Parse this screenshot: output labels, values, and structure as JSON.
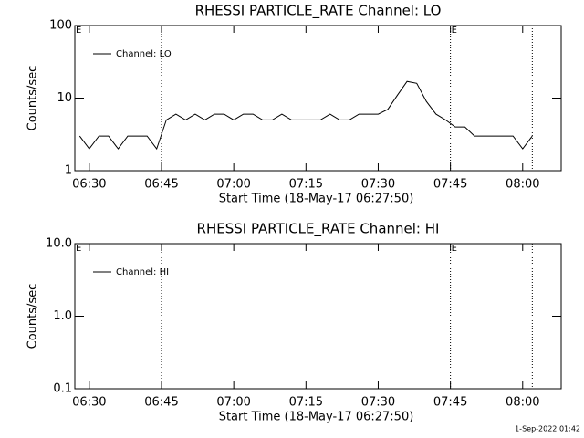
{
  "chart_data": [
    {
      "type": "line",
      "title": "RHESSI PARTICLE_RATE Channel: LO",
      "x_label": "Start Time (18-May-17 06:27:50)",
      "y_label": "Counts/sec",
      "y_log": true,
      "ylim": [
        1,
        100
      ],
      "yticks": [
        1,
        10,
        100
      ],
      "xlim": [
        "06:27",
        "08:08"
      ],
      "xticks": [
        "06:30",
        "06:45",
        "07:00",
        "07:15",
        "07:30",
        "07:45",
        "08:00"
      ],
      "vlines": [
        "06:45",
        "07:45",
        "08:02"
      ],
      "annotations": [
        {
          "text": "E",
          "x": "06:27"
        },
        {
          "text": "E",
          "x": "07:45"
        }
      ],
      "x": [
        "06:28",
        "06:30",
        "06:32",
        "06:34",
        "06:36",
        "06:38",
        "06:40",
        "06:42",
        "06:44",
        "06:46",
        "06:48",
        "06:50",
        "06:52",
        "06:54",
        "06:56",
        "06:58",
        "07:00",
        "07:02",
        "07:04",
        "07:06",
        "07:08",
        "07:10",
        "07:12",
        "07:14",
        "07:16",
        "07:18",
        "07:20",
        "07:22",
        "07:24",
        "07:26",
        "07:28",
        "07:30",
        "07:32",
        "07:34",
        "07:36",
        "07:38",
        "07:40",
        "07:42",
        "07:44",
        "07:46",
        "07:48",
        "07:50",
        "07:52",
        "07:54",
        "07:56",
        "07:58",
        "08:00",
        "08:02"
      ],
      "series": [
        {
          "name": "Channel: LO",
          "color": "#000000",
          "values": [
            3,
            2,
            3,
            3,
            2,
            3,
            3,
            3,
            2,
            5,
            6,
            5,
            6,
            5,
            6,
            6,
            5,
            6,
            6,
            5,
            5,
            6,
            5,
            5,
            5,
            5,
            6,
            5,
            5,
            6,
            6,
            6,
            7,
            11,
            17,
            16,
            9,
            6,
            5,
            4,
            4,
            3,
            3,
            3,
            3,
            3,
            2,
            3
          ]
        }
      ]
    },
    {
      "type": "line",
      "title": "RHESSI PARTICLE_RATE Channel: HI",
      "x_label": "Start Time (18-May-17 06:27:50)",
      "y_label": "Counts/sec",
      "y_log": true,
      "ylim": [
        0.1,
        10
      ],
      "yticks": [
        0.1,
        {
          "value": 1,
          "label": "1.0"
        },
        {
          "value": 10,
          "label": "10.0"
        }
      ],
      "xlim": [
        "06:27",
        "08:08"
      ],
      "xticks": [
        "06:30",
        "06:45",
        "07:00",
        "07:15",
        "07:30",
        "07:45",
        "08:00"
      ],
      "vlines": [
        "06:45",
        "07:45",
        "08:02"
      ],
      "annotations": [
        {
          "text": "E",
          "x": "06:27"
        },
        {
          "text": "E",
          "x": "07:45"
        }
      ],
      "x": [],
      "series": [
        {
          "name": "Channel: HI",
          "color": "#000000",
          "values": []
        }
      ]
    }
  ],
  "footer": "1-Sep-2022 01:42"
}
